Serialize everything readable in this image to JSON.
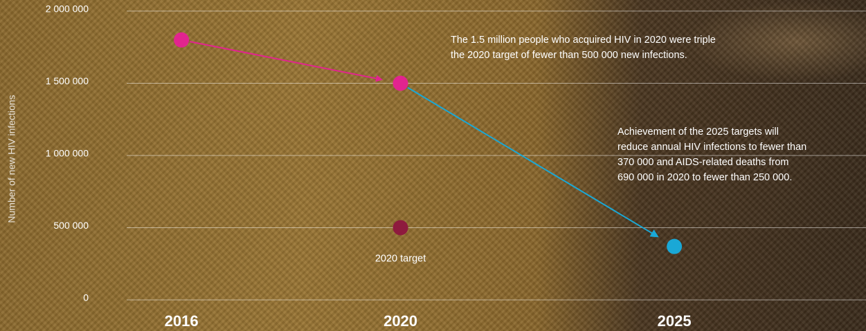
{
  "chart_data": {
    "type": "scatter",
    "ylabel": "Number of new HIV infections",
    "x": [
      2016,
      2020,
      2025
    ],
    "values": [
      1800000,
      1500000,
      370000
    ],
    "point_colors": [
      "#e2248f",
      "#e2248f",
      "#1aa8d6"
    ],
    "arrow_colors": [
      "#e2248f",
      "#1aa8d6"
    ],
    "target": {
      "x": 2020,
      "value": 500000,
      "label": "2020 target",
      "color": "#8e1a3e"
    },
    "xlim": [
      2015,
      2028.5
    ],
    "xticks": [
      2016,
      2020,
      2025
    ],
    "ylim": [
      0,
      2000000
    ],
    "yticks": [
      0,
      {
        "value": 500000,
        "label": "500 000"
      },
      {
        "value": 1000000,
        "label": "1 000 000"
      },
      {
        "value": 1500000,
        "label": "1 500 000"
      },
      {
        "value": 2000000,
        "label": "2 000 000"
      }
    ],
    "grid": true,
    "annotations": [
      {
        "lines": [
          "The 1.5 million people who acquired HIV in 2020 were triple",
          "the 2020 target of fewer than 500 000 new infections."
        ]
      },
      {
        "lines": [
          "Achievement of the 2025 targets will",
          "reduce annual HIV infections to fewer than",
          "370 000 and AIDS-related deaths from",
          "690 000 in 2020 to fewer than 250 000."
        ]
      }
    ]
  }
}
